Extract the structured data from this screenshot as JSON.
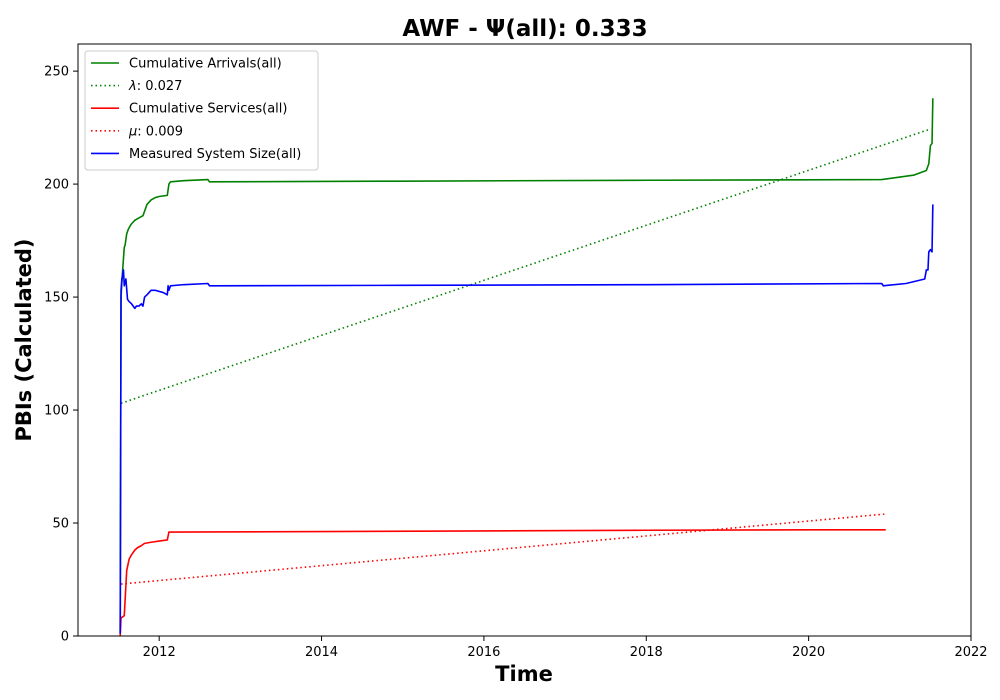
{
  "chart_data": {
    "type": "line",
    "title": "AWF -  Ψ(all): 0.333",
    "xlabel": "Time",
    "ylabel": "PBIs (Calculated)",
    "xlim": [
      2011.0,
      2022.0
    ],
    "ylim": [
      0,
      262
    ],
    "x_ticks": [
      2012,
      2014,
      2016,
      2018,
      2020,
      2022
    ],
    "x_tick_labels": [
      "2012",
      "2014",
      "2016",
      "2018",
      "2020",
      "2022"
    ],
    "y_ticks": [
      0,
      50,
      100,
      150,
      200,
      250
    ],
    "y_tick_labels": [
      "0",
      "50",
      "100",
      "150",
      "200",
      "250"
    ],
    "legend_position": "upper-left",
    "grid": false,
    "series": [
      {
        "name": "Cumulative Arrivals(all)",
        "color": "#008000",
        "style": "solid",
        "x": [
          2011.52,
          2011.53,
          2011.55,
          2011.57,
          2011.58,
          2011.6,
          2011.62,
          2011.65,
          2011.7,
          2011.75,
          2011.8,
          2011.85,
          2011.9,
          2011.95,
          2012.0,
          2012.1,
          2012.12,
          2012.14,
          2012.3,
          2012.6,
          2012.62,
          2015.0,
          2018.0,
          2020.9,
          2021.3,
          2021.45,
          2021.47,
          2021.48,
          2021.5,
          2021.52,
          2021.53
        ],
        "y": [
          1,
          150,
          162,
          172,
          173,
          178,
          180,
          182,
          184,
          185,
          186,
          191,
          193,
          194,
          194.5,
          195,
          200,
          201,
          201.5,
          202,
          201,
          201.3,
          201.7,
          202,
          204,
          206,
          208,
          209,
          217,
          218,
          238
        ]
      },
      {
        "name": "λ: 0.027",
        "label_prefix": "λ",
        "label_value": ": 0.027",
        "color": "#008000",
        "style": "dotted",
        "x": [
          2011.53,
          2021.47
        ],
        "y": [
          103,
          224
        ]
      },
      {
        "name": "Cumulative Services(all)",
        "color": "#ff0000",
        "style": "solid",
        "x": [
          2011.52,
          2011.53,
          2011.57,
          2011.6,
          2011.63,
          2011.66,
          2011.7,
          2011.73,
          2011.78,
          2011.82,
          2011.9,
          2012.0,
          2012.1,
          2012.12,
          2012.14,
          2014.0,
          2016.0,
          2018.0,
          2020.0,
          2020.95
        ],
        "y": [
          0,
          8,
          9,
          29,
          34,
          36,
          38,
          39,
          40,
          41,
          41.5,
          42,
          42.5,
          46,
          46,
          46.2,
          46.5,
          46.8,
          47,
          47
        ]
      },
      {
        "name": "μ: 0.009",
        "label_prefix": "μ",
        "label_value": ": 0.009",
        "color": "#ff0000",
        "style": "dotted",
        "x": [
          2011.53,
          2020.95
        ],
        "y": [
          23,
          54
        ]
      },
      {
        "name": "Measured System Size(all)",
        "color": "#0000ff",
        "style": "solid",
        "x": [
          2011.52,
          2011.53,
          2011.54,
          2011.55,
          2011.56,
          2011.57,
          2011.59,
          2011.61,
          2011.63,
          2011.66,
          2011.7,
          2011.72,
          2011.75,
          2011.78,
          2011.8,
          2011.82,
          2011.85,
          2011.9,
          2011.95,
          2012.05,
          2012.1,
          2012.11,
          2012.12,
          2012.14,
          2012.3,
          2012.6,
          2012.62,
          2015.0,
          2018.0,
          2020.9,
          2020.92,
          2021.2,
          2021.43,
          2021.45,
          2021.47,
          2021.48,
          2021.5,
          2021.52,
          2021.53
        ],
        "y": [
          1,
          153,
          158,
          160,
          162,
          155,
          158,
          149,
          148,
          147,
          145,
          146,
          146,
          147,
          146,
          150,
          151,
          153,
          153,
          152,
          151,
          155,
          153,
          155,
          155.5,
          156,
          155,
          155.2,
          155.5,
          156,
          155,
          156,
          158,
          162,
          162,
          170,
          171,
          170,
          191
        ]
      }
    ]
  }
}
